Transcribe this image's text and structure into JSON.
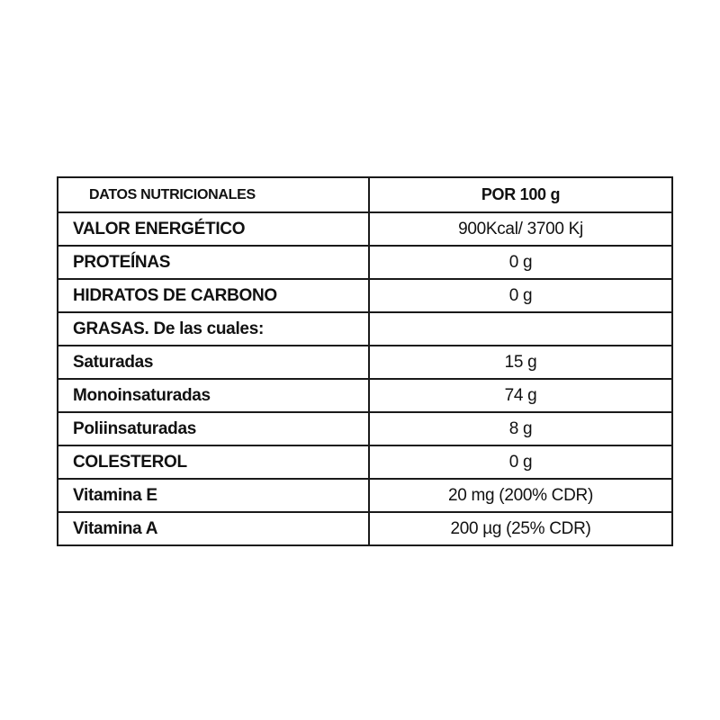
{
  "header": {
    "label": "DATOS NUTRICIONALES",
    "value": "POR 100 g"
  },
  "rows": [
    {
      "label": "VALOR ENERGÉTICO",
      "value": "900Kcal/ 3700 Kj"
    },
    {
      "label": "PROTEÍNAS",
      "value": "0 g"
    },
    {
      "label": "HIDRATOS DE CARBONO",
      "value": "0 g"
    },
    {
      "label": "GRASAS. De las cuales:",
      "value": ""
    },
    {
      "label": "Saturadas",
      "value": "15 g"
    },
    {
      "label": "Monoinsaturadas",
      "value": "74 g"
    },
    {
      "label": "Poliinsaturadas",
      "value": "8 g"
    },
    {
      "label": "COLESTEROL",
      "value": "0 g"
    },
    {
      "label": "Vitamina E",
      "value": "20 mg (200% CDR)"
    },
    {
      "label": "Vitamina A",
      "value": "200 µg (25% CDR)"
    }
  ]
}
